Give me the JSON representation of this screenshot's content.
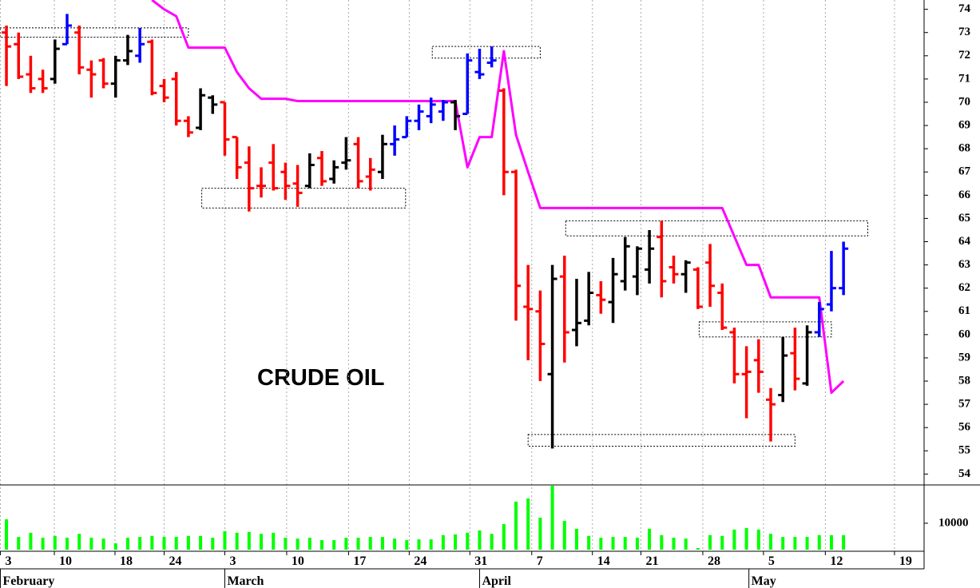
{
  "chart_data": {
    "type": "ohlc",
    "annotation": "CRUDE OIL",
    "x": [
      1,
      2,
      3,
      4,
      5,
      6,
      7,
      8,
      9,
      10,
      11,
      12,
      13,
      14,
      15,
      16,
      17,
      18,
      19,
      20,
      21,
      22,
      23,
      24,
      25,
      26,
      27,
      28,
      29,
      30,
      31,
      32,
      33,
      34,
      35,
      36,
      37,
      38,
      39,
      40,
      41,
      42,
      43,
      44,
      45,
      46,
      47,
      48,
      49,
      50,
      51,
      52,
      53,
      54,
      55,
      56,
      57,
      58,
      59,
      60,
      61,
      62,
      63,
      64,
      65,
      66,
      67,
      68,
      69,
      70
    ],
    "open": [
      73,
      72.5,
      71.2,
      71,
      71,
      72.5,
      73,
      71.4,
      71.8,
      70.8,
      71.8,
      72,
      72.6,
      70.7,
      71,
      69.2,
      68.9,
      70.2,
      70,
      68.5,
      67.4,
      66.4,
      67.4,
      67,
      66.5,
      66.4,
      67.6,
      66.7,
      67.4,
      68.2,
      66.8,
      67,
      68.2,
      68.5,
      69.2,
      69.4,
      69.6,
      70,
      69.5,
      71.3,
      71.7,
      70.5,
      67,
      61.2,
      61,
      58.3,
      62.5,
      60.2,
      60.6,
      61.7,
      61.4,
      62.3,
      62.5,
      62.8,
      64.2,
      62.9,
      62.6,
      62.8,
      63.1,
      61.8,
      60.1,
      58.3,
      58.9,
      57.2,
      57.4,
      59.2,
      57.9,
      60.1,
      61.3,
      62
    ],
    "high": [
      73.3,
      73,
      72,
      71.4,
      72.7,
      73.8,
      73.3,
      71.8,
      71.9,
      72,
      72.9,
      73.2,
      72.7,
      71,
      71.3,
      69.4,
      70.6,
      70.3,
      70,
      68.5,
      68.1,
      67.2,
      68.2,
      67.4,
      67.3,
      67.8,
      67.9,
      67.5,
      68.5,
      68.5,
      67.6,
      68.6,
      69,
      69.4,
      69.9,
      70.2,
      70.1,
      70.1,
      72.1,
      72.3,
      72.4,
      70.6,
      67.1,
      63,
      61.9,
      63,
      63.4,
      62.4,
      62.7,
      62.3,
      63.3,
      64.2,
      63.8,
      64.5,
      64.9,
      63.4,
      63.2,
      62.9,
      63.9,
      62.2,
      60.3,
      59.5,
      59.8,
      57.7,
      59.9,
      60.3,
      60.4,
      61.4,
      63.6,
      64
    ],
    "low": [
      70.7,
      71,
      70.4,
      70.4,
      70.8,
      72.5,
      71.2,
      70.2,
      70.6,
      70.2,
      71.6,
      71.7,
      70.3,
      70,
      69,
      68.5,
      68.8,
      69.5,
      67.7,
      66.7,
      65.3,
      65.9,
      66.2,
      65.8,
      65.5,
      66.3,
      66.4,
      66.5,
      67.1,
      66.3,
      66.2,
      66.7,
      67.7,
      68.5,
      68.8,
      69.1,
      69.2,
      68.8,
      69.5,
      71,
      71.5,
      66,
      60.6,
      58.9,
      58,
      55.1,
      58.8,
      59.5,
      60.4,
      60.9,
      60.5,
      61.9,
      61.7,
      62.2,
      61.6,
      62.2,
      61.8,
      61.1,
      61.2,
      60.2,
      57.9,
      56.4,
      57.5,
      55.4,
      57.1,
      57.6,
      57.8,
      59.9,
      61,
      61.7
    ],
    "close": [
      72.4,
      71.1,
      70.6,
      70.6,
      72.3,
      73.3,
      71.5,
      71.2,
      70.8,
      71.8,
      72.2,
      72.5,
      70.4,
      70.2,
      69.2,
      68.7,
      70.3,
      69.9,
      68.4,
      67.2,
      66.3,
      66.4,
      66.3,
      66.4,
      66.1,
      67.3,
      66.6,
      67.2,
      67.5,
      66.6,
      67.1,
      68.2,
      68.4,
      69.2,
      69.6,
      69.9,
      70,
      69.4,
      71.8,
      71.2,
      71.8,
      67,
      62.1,
      61.1,
      59.6,
      62.4,
      60.1,
      60.5,
      61.8,
      61.5,
      62.6,
      63.8,
      63.7,
      63.7,
      62.3,
      62.6,
      63.1,
      61.2,
      62.1,
      60.3,
      58.3,
      58.4,
      58.4,
      57,
      59.1,
      58.1,
      60.1,
      61.1,
      62,
      63.7
    ],
    "colors": [
      "#ff0000",
      "#ff0000",
      "#ff0000",
      "#ff0000",
      "#000000",
      "#0000ff",
      "#ff0000",
      "#ff0000",
      "#ff0000",
      "#000000",
      "#000000",
      "#0000ff",
      "#ff0000",
      "#ff0000",
      "#ff0000",
      "#ff0000",
      "#000000",
      "#000000",
      "#ff0000",
      "#ff0000",
      "#ff0000",
      "#ff0000",
      "#ff0000",
      "#ff0000",
      "#ff0000",
      "#000000",
      "#ff0000",
      "#000000",
      "#000000",
      "#ff0000",
      "#ff0000",
      "#000000",
      "#0000ff",
      "#0000ff",
      "#0000ff",
      "#0000ff",
      "#0000ff",
      "#000000",
      "#0000ff",
      "#0000ff",
      "#0000ff",
      "#ff0000",
      "#ff0000",
      "#ff0000",
      "#ff0000",
      "#000000",
      "#ff0000",
      "#000000",
      "#000000",
      "#ff0000",
      "#000000",
      "#000000",
      "#000000",
      "#000000",
      "#ff0000",
      "#ff0000",
      "#000000",
      "#ff0000",
      "#ff0000",
      "#ff0000",
      "#ff0000",
      "#ff0000",
      "#ff0000",
      "#ff0000",
      "#000000",
      "#ff0000",
      "#000000",
      "#0000ff",
      "#0000ff",
      "#0000ff"
    ],
    "xlim": [
      0.47,
      76.64
    ],
    "ylim": [
      53.6,
      74.4
    ],
    "yticks": [
      54,
      55,
      56,
      57,
      58,
      59,
      60,
      61,
      62,
      63,
      64,
      65,
      66,
      67,
      68,
      69,
      70,
      71,
      72,
      73,
      74
    ],
    "xticks": [
      {
        "value": 0.5,
        "label": "3"
      },
      {
        "value": 4.95,
        "label": "10"
      },
      {
        "value": 9.95,
        "label": "18"
      },
      {
        "value": 14,
        "label": "24"
      },
      {
        "value": 19,
        "label": "3"
      },
      {
        "value": 24.1,
        "label": "10"
      },
      {
        "value": 29.2,
        "label": "17"
      },
      {
        "value": 34.2,
        "label": "24"
      },
      {
        "value": 39.2,
        "label": "31"
      },
      {
        "value": 44.3,
        "label": "7"
      },
      {
        "value": 49.3,
        "label": "14"
      },
      {
        "value": 53.3,
        "label": "21"
      },
      {
        "value": 58.4,
        "label": "28"
      },
      {
        "value": 63.4,
        "label": "5"
      },
      {
        "value": 68.5,
        "label": "12"
      },
      {
        "value": 74.2,
        "label": "19"
      }
    ],
    "month_ticks": [
      {
        "value": 0.5,
        "label": "February"
      },
      {
        "value": 19,
        "label": "March"
      },
      {
        "value": 40,
        "label": "April"
      },
      {
        "value": 62.2,
        "label": "May"
      }
    ],
    "grid": true,
    "stop_line": {
      "color": "#ff00ff",
      "x": [
        13,
        14,
        15,
        16,
        19,
        20,
        21,
        22,
        24,
        25,
        38,
        39,
        40,
        41,
        42,
        43,
        44,
        45,
        60,
        62,
        63,
        64,
        68,
        69,
        70
      ],
      "values": [
        74.4,
        74.0,
        73.7,
        72.35,
        72.35,
        71.3,
        70.6,
        70.15,
        70.15,
        70.05,
        70.05,
        67.2,
        68.5,
        68.5,
        72.2,
        68.6,
        67.0,
        65.45,
        65.45,
        63.0,
        63.0,
        61.6,
        61.6,
        57.5,
        58.0
      ]
    },
    "zones": [
      {
        "x": [
          0.47,
          16
        ],
        "y": [
          72.8,
          73.2
        ]
      },
      {
        "x": [
          17.1,
          33.9
        ],
        "y": [
          65.45,
          66.3
        ]
      },
      {
        "x": [
          36.1,
          45
        ],
        "y": [
          71.9,
          72.4
        ]
      },
      {
        "x": [
          47.1,
          72
        ],
        "y": [
          64.25,
          64.9
        ]
      },
      {
        "x": [
          58.1,
          69
        ],
        "y": [
          59.9,
          60.55
        ]
      },
      {
        "x": [
          44,
          66
        ],
        "y": [
          55.2,
          55.7
        ]
      }
    ],
    "volume": {
      "type": "bar",
      "color": "#00ff00",
      "values": [
        11500,
        4800,
        6400,
        4500,
        5200,
        4500,
        6000,
        4500,
        4200,
        2400,
        4500,
        4800,
        5200,
        4800,
        4800,
        5200,
        5200,
        4500,
        7000,
        6400,
        6700,
        6000,
        6400,
        4500,
        4200,
        4500,
        3600,
        3600,
        4500,
        4500,
        4800,
        4800,
        4200,
        3600,
        3900,
        3900,
        5500,
        5800,
        6400,
        7300,
        6000,
        9700,
        18200,
        19400,
        12100,
        24200,
        10900,
        7900,
        5200,
        4500,
        4800,
        4800,
        4500,
        7900,
        5500,
        4500,
        4200,
        600,
        5500,
        5200,
        7600,
        8200,
        7600,
        6000,
        4800,
        4800,
        4800,
        5500,
        5500,
        5500
      ],
      "ylim": [
        0,
        24500
      ],
      "yticks": [
        10000
      ]
    }
  }
}
